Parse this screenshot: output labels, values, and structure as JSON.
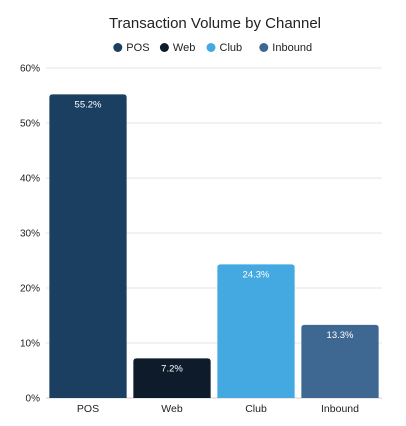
{
  "chart_data": {
    "type": "bar",
    "title": "Transaction Volume by Channel",
    "categories": [
      "POS",
      "Web",
      "Club",
      "Inbound"
    ],
    "values": [
      55.2,
      7.2,
      24.3,
      13.3
    ],
    "value_labels": [
      "55.2%",
      "7.2%",
      "24.3%",
      "13.3%"
    ],
    "colors": [
      "#1b3f60",
      "#0d1b2a",
      "#45a9e1",
      "#3e6892"
    ],
    "legend": {
      "placement": "top-center",
      "entries": [
        "POS",
        "Web",
        "Club",
        "Inbound"
      ]
    },
    "ylim": [
      0,
      60
    ],
    "yticks": [
      0,
      10,
      20,
      30,
      40,
      50,
      60
    ],
    "ytick_labels": [
      "0%",
      "10%",
      "20%",
      "30%",
      "40%",
      "50%",
      "60%"
    ],
    "xlabel": "",
    "ylabel": "",
    "grid": true
  }
}
